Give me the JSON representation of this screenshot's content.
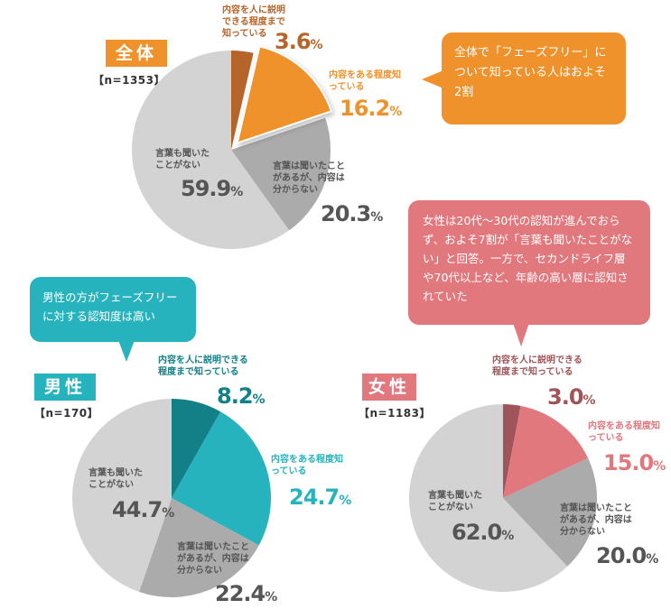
{
  "colors": {
    "all_accent": "#f0922b",
    "all_dark": "#b5652a",
    "male_accent": "#27b3bd",
    "male_dark": "#137f86",
    "female_accent": "#e0787e",
    "female_dark": "#9e5458",
    "gray": "#ababab",
    "light_gray": "#d3d3d3"
  },
  "bubbles": {
    "all": "全体で「フェーズフリー」について知っている人はおよそ2割",
    "male": "男性の方がフェーズフリーに対する認知度は高い",
    "female": "女性は20代～30代の認知が進んでおらず、およそ7割が「言葉も聞いたことがない」と回答。一方で、セカンドライフ層や70代以上など、年齢の高い層に認知されていた"
  },
  "chart_data": [
    {
      "type": "pie",
      "title": "全体",
      "n_label": "【n=1353】",
      "categories": [
        "内容を人に説明できる程度まで知っている",
        "内容をある程度知っている",
        "言葉は聞いたことがあるが、内容は分からない",
        "言葉も聞いたことがない"
      ],
      "values": [
        3.6,
        16.2,
        20.3,
        59.9
      ],
      "value_labels": [
        "3.6",
        "16.2",
        "20.3",
        "59.9"
      ],
      "unit": "%",
      "highlight_index": 1
    },
    {
      "type": "pie",
      "title": "男性",
      "n_label": "【n=170】",
      "categories": [
        "内容を人に説明できる程度まで知っている",
        "内容をある程度知っている",
        "言葉は聞いたことがあるが、内容は分からない",
        "言葉も聞いたことがない"
      ],
      "values": [
        8.2,
        24.7,
        22.4,
        44.7
      ],
      "value_labels": [
        "8.2",
        "24.7",
        "22.4",
        "44.7"
      ],
      "unit": "%"
    },
    {
      "type": "pie",
      "title": "女性",
      "n_label": "【n=1183】",
      "categories": [
        "内容を人に説明できる程度まで知っている",
        "内容をある程度知っている",
        "言葉は聞いたことがあるが、内容は分からない",
        "言葉も聞いたことがない"
      ],
      "values": [
        3.0,
        15.0,
        20.0,
        62.0
      ],
      "value_labels": [
        "3.0",
        "15.0",
        "20.0",
        "62.0"
      ],
      "unit": "%"
    }
  ]
}
